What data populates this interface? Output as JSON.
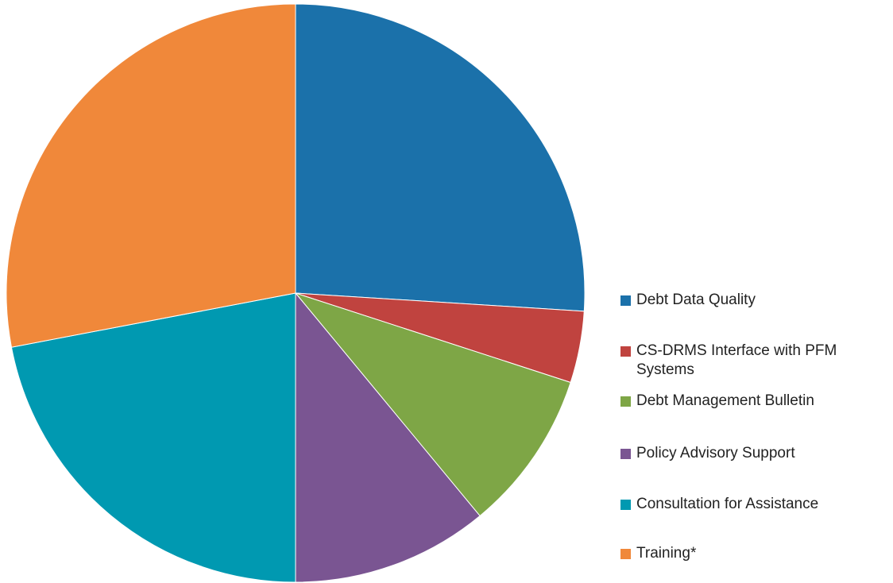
{
  "chart_data": {
    "type": "pie",
    "categories": [
      "Debt Data Quality",
      "CS-DRMS Interface with PFM Systems",
      "Debt Management Bulletin",
      "Policy Advisory Support",
      "Consultation for Assistance",
      "Training*"
    ],
    "values": [
      26,
      4,
      9,
      11,
      22,
      28
    ],
    "colors": [
      "#1b71aa",
      "#c0433f",
      "#7ea646",
      "#7a5592",
      "#0099b1",
      "#f0883a"
    ],
    "legend": "right"
  }
}
